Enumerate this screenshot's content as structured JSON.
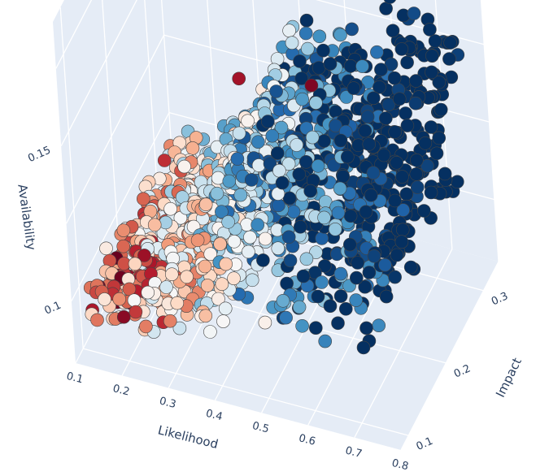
{
  "chart_data": {
    "type": "scatter3d",
    "title": "",
    "axes": {
      "x": {
        "label": "Likelihood",
        "range": [
          0.1,
          0.8
        ],
        "ticks": [
          "0.1",
          "0.2",
          "0.3",
          "0.4",
          "0.5",
          "0.6",
          "0.7",
          "0.8"
        ]
      },
      "y": {
        "label": "Impact",
        "range": [
          0.08,
          0.34
        ],
        "ticks": [
          "0.1",
          "0.2",
          "0.3"
        ]
      },
      "z": {
        "label": "Availability",
        "range": [
          0.08,
          0.19
        ],
        "ticks": [
          "0.1",
          "0.15"
        ]
      }
    },
    "grid": true,
    "legend": "none",
    "colorscale": "RdBu",
    "colors": {
      "scene_background": "#e5ecf6",
      "grid": "#ffffff",
      "text": "#2a3f5f",
      "marker_outline": "#444444"
    },
    "point_cloud": {
      "description_counts": {
        "points": 1400
      },
      "surface": "availability rises from about 0.10 near low likelihood to about 0.17 near likelihood 0.45, staying high for larger likelihood; impact spans 0.08 to 0.33"
    },
    "sample_points": [
      {
        "x": 0.49,
        "y": 0.09,
        "z": 0.185,
        "c": 0.92
      },
      {
        "x": 0.62,
        "y": 0.12,
        "z": 0.181,
        "c": 0.97
      },
      {
        "x": 0.72,
        "y": 0.33,
        "z": 0.15,
        "c": 0.02
      },
      {
        "x": 0.75,
        "y": 0.33,
        "z": 0.147,
        "c": 0.03
      }
    ]
  }
}
